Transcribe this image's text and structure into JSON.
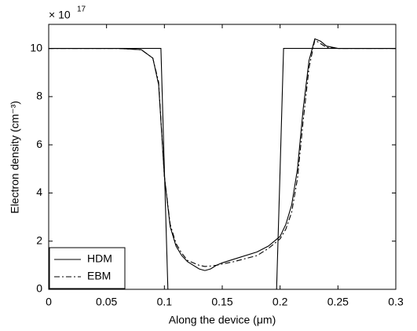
{
  "chart_data": {
    "type": "line",
    "xlabel": "Along the device (μm)",
    "ylabel": "Electron density (cm⁻³)",
    "y_multiplier": {
      "base": "× 10",
      "exponent": "17"
    },
    "xlim": [
      0,
      0.3
    ],
    "xticks": [
      0,
      0.05,
      0.1,
      0.15,
      0.2,
      0.25,
      0.3
    ],
    "ylim": [
      0,
      11
    ],
    "yticks": [
      0,
      2,
      4,
      6,
      8,
      10
    ],
    "legend": "lower left",
    "series": [
      {
        "color": "#000000",
        "dash": "solid",
        "x": [
          0,
          0.097,
          0.1,
          0.103,
          0.197,
          0.2,
          0.203,
          0.3
        ],
        "values": [
          10,
          10,
          5,
          0,
          0,
          5,
          10,
          10
        ]
      },
      {
        "name": "HDM",
        "color": "#000000",
        "dash": "solid",
        "x": [
          0,
          0.06,
          0.08,
          0.09,
          0.095,
          0.1,
          0.105,
          0.11,
          0.115,
          0.12,
          0.13,
          0.135,
          0.14,
          0.145,
          0.15,
          0.16,
          0.18,
          0.19,
          0.2,
          0.205,
          0.21,
          0.215,
          0.22,
          0.225,
          0.23,
          0.235,
          0.24,
          0.25,
          0.27,
          0.3
        ],
        "values": [
          10,
          10,
          9.95,
          9.6,
          8.5,
          4.7,
          2.6,
          1.8,
          1.4,
          1.15,
          0.85,
          0.78,
          0.85,
          1.0,
          1.1,
          1.25,
          1.55,
          1.8,
          2.2,
          2.7,
          3.5,
          5,
          7.5,
          9.5,
          10.4,
          10.3,
          10.1,
          10.0,
          10,
          10
        ]
      },
      {
        "name": "EBM",
        "color": "#000000",
        "dash": "dashdot",
        "x": [
          0,
          0.06,
          0.08,
          0.09,
          0.095,
          0.1,
          0.105,
          0.11,
          0.115,
          0.12,
          0.13,
          0.135,
          0.14,
          0.145,
          0.15,
          0.16,
          0.18,
          0.19,
          0.2,
          0.205,
          0.21,
          0.215,
          0.22,
          0.225,
          0.23,
          0.235,
          0.24,
          0.25,
          0.27,
          0.3
        ],
        "values": [
          10,
          10,
          9.95,
          9.6,
          8.6,
          4.7,
          2.7,
          1.9,
          1.5,
          1.2,
          1.0,
          0.95,
          0.97,
          1.0,
          1.05,
          1.15,
          1.4,
          1.7,
          2.1,
          2.5,
          3.2,
          4.6,
          7,
          9.2,
          10.35,
          10.2,
          10.05,
          10.0,
          10,
          10
        ]
      }
    ]
  }
}
